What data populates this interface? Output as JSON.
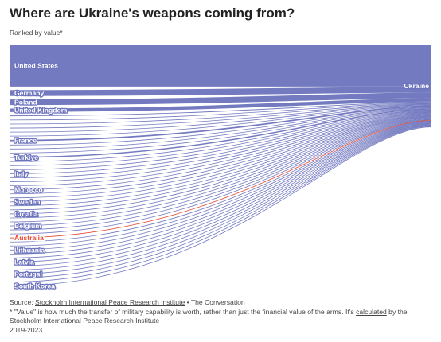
{
  "header": {
    "title": "Where are Ukraine's weapons coming from?",
    "subtitle": "Ranked by value*"
  },
  "footer": {
    "source_prefix": "Source: ",
    "source_link": "Stockholm International Peace Research Institute",
    "source_suffix": " • The Conversation",
    "note_prefix": "* \"Value\" is how much the transfer of military capability is worth, rather than just the financial value of the arms. It's ",
    "note_link": "calculated",
    "note_suffix": " by the Stockholm International Peace Research Institute",
    "years": "2019-2023"
  },
  "chart_data": {
    "type": "sankey",
    "target": "Ukraine",
    "colors": {
      "flow": "#6c73bd",
      "highlight": "#e8452c",
      "highlight_label": "#e8452c"
    },
    "highlighted": "Australia",
    "labeled_sources": [
      "United States",
      "Germany",
      "Poland",
      "United Kingdom",
      "France",
      "Turkiye",
      "Italy",
      "Morocco",
      "Sweden",
      "Croatia",
      "Belgium",
      "Australia",
      "Lithuania",
      "Latvia",
      "Portugal",
      "South Korea"
    ],
    "sources": [
      {
        "name": "United States",
        "value": 3900
      },
      {
        "name": "Germany",
        "value": 550
      },
      {
        "name": "Poland",
        "value": 520
      },
      {
        "name": "United Kingdom",
        "value": 320
      },
      {
        "name": "",
        "value": 70
      },
      {
        "name": "",
        "value": 60
      },
      {
        "name": "",
        "value": 55
      },
      {
        "name": "",
        "value": 50
      },
      {
        "name": "",
        "value": 48
      },
      {
        "name": "",
        "value": 45
      },
      {
        "name": "France",
        "value": 130
      },
      {
        "name": "",
        "value": 40
      },
      {
        "name": "",
        "value": 38
      },
      {
        "name": "",
        "value": 35
      },
      {
        "name": "Turkiye",
        "value": 110
      },
      {
        "name": "",
        "value": 30
      },
      {
        "name": "",
        "value": 28
      },
      {
        "name": "",
        "value": 26
      },
      {
        "name": "Italy",
        "value": 60
      },
      {
        "name": "",
        "value": 22
      },
      {
        "name": "",
        "value": 20
      },
      {
        "name": "",
        "value": 18
      },
      {
        "name": "Morocco",
        "value": 55
      },
      {
        "name": "",
        "value": 14
      },
      {
        "name": "",
        "value": 13
      },
      {
        "name": "Sweden",
        "value": 50
      },
      {
        "name": "",
        "value": 12
      },
      {
        "name": "",
        "value": 11
      },
      {
        "name": "Croatia",
        "value": 45
      },
      {
        "name": "",
        "value": 10
      },
      {
        "name": "",
        "value": 9
      },
      {
        "name": "Belgium",
        "value": 40
      },
      {
        "name": "",
        "value": 8
      },
      {
        "name": "",
        "value": 8
      },
      {
        "name": "Australia",
        "value": 35
      },
      {
        "name": "",
        "value": 7
      },
      {
        "name": "",
        "value": 7
      },
      {
        "name": "Lithuania",
        "value": 30
      },
      {
        "name": "",
        "value": 6
      },
      {
        "name": "",
        "value": 6
      },
      {
        "name": "Latvia",
        "value": 25
      },
      {
        "name": "",
        "value": 5
      },
      {
        "name": "",
        "value": 5
      },
      {
        "name": "Portugal",
        "value": 22
      },
      {
        "name": "",
        "value": 4
      },
      {
        "name": "",
        "value": 4
      },
      {
        "name": "South Korea",
        "value": 20
      }
    ]
  }
}
